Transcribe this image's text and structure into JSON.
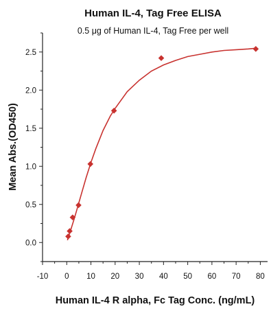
{
  "chart_data": {
    "type": "scatter",
    "title": "Human IL-4, Tag Free ELISA",
    "subtitle": "0.5 μg of Human IL-4, Tag Free per well",
    "xlabel": "Human IL-4 R alpha, Fc Tag Conc. (ng/mL)",
    "ylabel": "Mean Abs.(OD450)",
    "xlim": [
      -10,
      83
    ],
    "ylim": [
      -0.25,
      2.75
    ],
    "xticks": [
      -10,
      0,
      10,
      20,
      30,
      40,
      50,
      60,
      70,
      80
    ],
    "xtick_labels": [
      "-10",
      "0",
      "10",
      "20",
      "30",
      "40",
      "50",
      "60",
      "70",
      "80"
    ],
    "yticks": [
      0.0,
      0.5,
      1.0,
      1.5,
      2.0,
      2.5
    ],
    "ytick_labels": [
      "0.0",
      "0.5",
      "1.0",
      "1.5",
      "2.0",
      "2.5"
    ],
    "grid": false,
    "legend": "none",
    "series": [
      {
        "marker": "diamond",
        "color": "#c8322f",
        "x": [
          0.61,
          1.22,
          2.44,
          4.88,
          9.77,
          19.53,
          39.06,
          78.13
        ],
        "y": [
          0.08,
          0.15,
          0.33,
          0.49,
          1.03,
          1.73,
          2.42,
          2.54
        ]
      }
    ],
    "fit_curve": {
      "type": "sigmoidal",
      "color": "#c8322f",
      "x": [
        0.3,
        1,
        2,
        3,
        4,
        5,
        6,
        8,
        10,
        12,
        15,
        18,
        20,
        25,
        30,
        35,
        40,
        45,
        50,
        55,
        60,
        65,
        70,
        75,
        78.5
      ],
      "y": [
        0.03,
        0.1,
        0.2,
        0.3,
        0.41,
        0.52,
        0.63,
        0.85,
        1.05,
        1.23,
        1.47,
        1.66,
        1.76,
        1.98,
        2.13,
        2.25,
        2.33,
        2.39,
        2.44,
        2.47,
        2.5,
        2.52,
        2.53,
        2.54,
        2.55
      ]
    }
  }
}
